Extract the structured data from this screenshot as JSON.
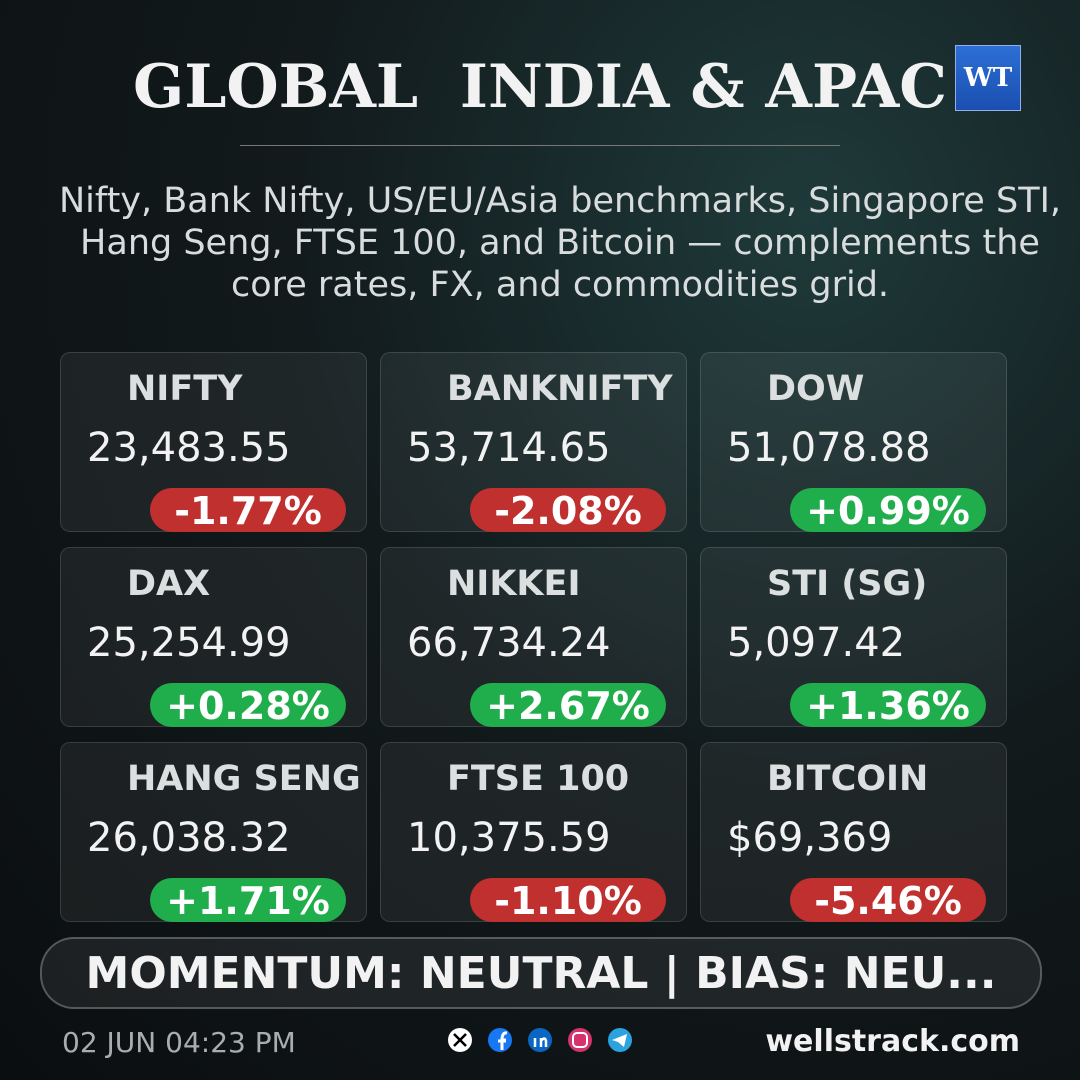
{
  "header": {
    "title": "GLOBAL  INDIA & APAC",
    "logo": "WT",
    "subtitle": "Nifty, Bank Nifty, US/EU/Asia benchmarks, Singapore STI, Hang Seng, FTSE 100, and Bitcoin — complements the core rates, FX, and commodities grid."
  },
  "cards": [
    {
      "name": "NIFTY",
      "value": "23,483.55",
      "change": "-1.77%"
    },
    {
      "name": "BANKNIFTY",
      "value": "53,714.65",
      "change": "-2.08%"
    },
    {
      "name": "DOW",
      "value": "51,078.88",
      "change": "+0.99%"
    },
    {
      "name": "DAX",
      "value": "25,254.99",
      "change": "+0.28%"
    },
    {
      "name": "NIKKEI",
      "value": "66,734.24",
      "change": "+2.67%"
    },
    {
      "name": "STI (SG)",
      "value": "5,097.42",
      "change": "+1.36%"
    },
    {
      "name": "HANG SENG",
      "value": "26,038.32",
      "change": "+1.71%"
    },
    {
      "name": "FTSE 100",
      "value": "10,375.59",
      "change": "-1.10%"
    },
    {
      "name": "BITCOIN",
      "value": "$69,369",
      "change": "-5.46%"
    }
  ],
  "banner": "MOMENTUM: NEUTRAL | BIAS: NEU...",
  "footer": {
    "timestamp": "02 JUN 04:23 PM",
    "site": "wellstrack.com"
  }
}
